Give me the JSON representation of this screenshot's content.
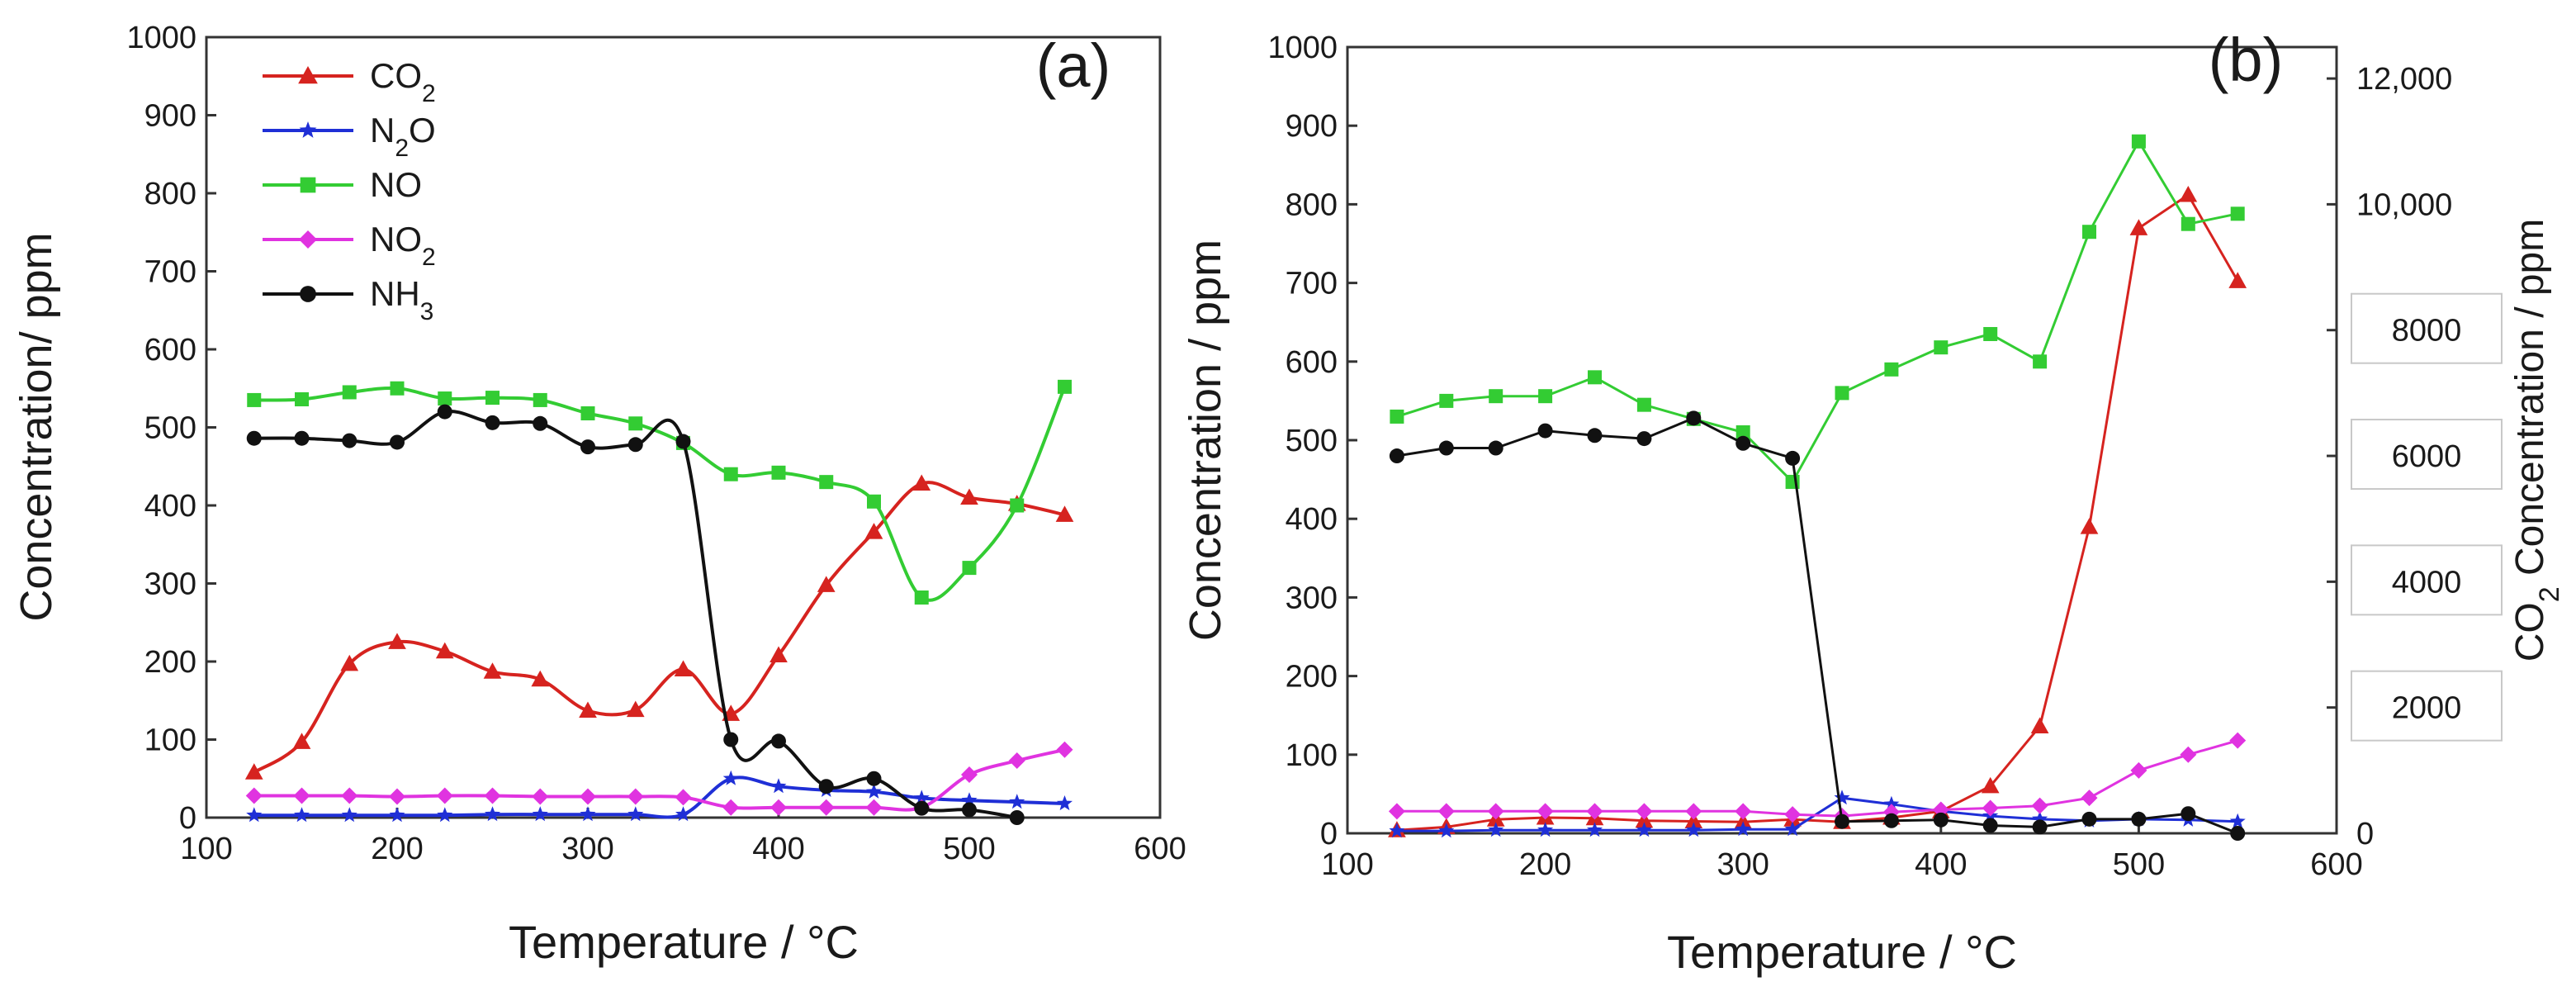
{
  "chart_data": [
    {
      "type": "line",
      "panel_label": "(a)",
      "xlabel": "Temperature / °C",
      "ylabel": "Concentration/ ppm",
      "xlim": [
        100,
        600
      ],
      "ylim": [
        0,
        1000
      ],
      "xticks": [
        "100",
        "200",
        "300",
        "400",
        "500",
        "600"
      ],
      "yticks": [
        "0",
        "100",
        "200",
        "300",
        "400",
        "500",
        "600",
        "700",
        "800",
        "900",
        "1000"
      ],
      "legend_position": "top-left",
      "series": [
        {
          "name": "CO2",
          "label_main": "CO",
          "label_sub": "2",
          "color": "#d6231f",
          "marker": "triangle",
          "x": [
            125,
            150,
            175,
            200,
            225,
            250,
            275,
            300,
            325,
            350,
            375,
            400,
            425,
            450,
            475,
            500,
            525,
            550
          ],
          "y": [
            58,
            97,
            197,
            225,
            213,
            187,
            177,
            137,
            138,
            190,
            133,
            208,
            298,
            366,
            428,
            410,
            402,
            388
          ]
        },
        {
          "name": "N2O",
          "label_main": "N",
          "label_sub": "2",
          "label_tail": "O",
          "color": "#1f2fd6",
          "marker": "star",
          "x": [
            125,
            150,
            175,
            200,
            225,
            250,
            275,
            300,
            325,
            350,
            375,
            400,
            425,
            450,
            475,
            500,
            525,
            550
          ],
          "y": [
            3,
            3,
            3,
            3,
            3,
            4,
            4,
            4,
            4,
            4,
            50,
            40,
            35,
            33,
            25,
            22,
            20,
            18
          ]
        },
        {
          "name": "NO",
          "label_main": "NO",
          "color": "#33cc33",
          "marker": "square",
          "x": [
            125,
            150,
            175,
            200,
            225,
            250,
            275,
            300,
            325,
            350,
            375,
            400,
            425,
            450,
            475,
            500,
            525,
            550
          ],
          "y": [
            535,
            536,
            545,
            550,
            537,
            538,
            535,
            518,
            505,
            480,
            440,
            442,
            430,
            405,
            282,
            320,
            400,
            552
          ]
        },
        {
          "name": "NO2",
          "label_main": "NO",
          "label_sub": "2",
          "color": "#e033e0",
          "marker": "diamond",
          "x": [
            125,
            150,
            175,
            200,
            225,
            250,
            275,
            300,
            325,
            350,
            375,
            400,
            425,
            450,
            475,
            500,
            525,
            550
          ],
          "y": [
            28,
            28,
            28,
            27,
            28,
            28,
            27,
            27,
            27,
            26,
            13,
            13,
            13,
            13,
            13,
            55,
            73,
            87
          ]
        },
        {
          "name": "NH3",
          "label_main": "NH",
          "label_sub": "3",
          "color": "#111111",
          "marker": "circle",
          "x": [
            125,
            150,
            175,
            200,
            225,
            250,
            275,
            300,
            325,
            350,
            375,
            400,
            425,
            450,
            475,
            500,
            525
          ],
          "y": [
            486,
            486,
            483,
            481,
            520,
            506,
            505,
            475,
            478,
            482,
            100,
            98,
            40,
            50,
            12,
            10,
            0
          ]
        }
      ]
    },
    {
      "type": "line",
      "panel_label": "(b)",
      "xlabel": "Temperature / °C",
      "ylabel": "Concentration / ppm",
      "ylabel_right_main": "CO",
      "ylabel_right_sub": "2",
      "ylabel_right_tail": " Concentration / ppm",
      "xlim": [
        100,
        600
      ],
      "ylim": [
        0,
        1000
      ],
      "ylim_right": [
        0,
        12500
      ],
      "xticks": [
        "100",
        "200",
        "300",
        "400",
        "500",
        "600"
      ],
      "yticks": [
        "0",
        "100",
        "200",
        "300",
        "400",
        "500",
        "600",
        "700",
        "800",
        "900",
        "1000"
      ],
      "yticks_right": [
        "0",
        "2000",
        "4000",
        "6000",
        "8000",
        "10,000",
        "12,000"
      ],
      "yticks_right_values": [
        0,
        2000,
        4000,
        6000,
        8000,
        10000,
        12000
      ],
      "series": [
        {
          "name": "CO2",
          "axis": "right",
          "color": "#d6231f",
          "marker": "triangle",
          "x": [
            125,
            150,
            175,
            200,
            225,
            250,
            275,
            300,
            325,
            350,
            375,
            400,
            425,
            450,
            475,
            500,
            525,
            550
          ],
          "y": [
            50,
            100,
            220,
            250,
            240,
            200,
            190,
            180,
            220,
            180,
            250,
            350,
            750,
            1700,
            4870,
            9620,
            10150,
            8780
          ]
        },
        {
          "name": "N2O",
          "axis": "left",
          "color": "#1f2fd6",
          "marker": "star",
          "x": [
            125,
            150,
            175,
            200,
            225,
            250,
            275,
            300,
            325,
            350,
            375,
            400,
            425,
            450,
            475,
            500,
            525,
            550
          ],
          "y": [
            3,
            3,
            4,
            4,
            4,
            4,
            4,
            5,
            5,
            45,
            37,
            28,
            22,
            18,
            16,
            18,
            17,
            15
          ]
        },
        {
          "name": "NO",
          "axis": "left",
          "color": "#33cc33",
          "marker": "square",
          "x": [
            125,
            150,
            175,
            200,
            225,
            250,
            275,
            300,
            325,
            350,
            375,
            400,
            425,
            450,
            475,
            500,
            525,
            550
          ],
          "y": [
            530,
            550,
            556,
            556,
            580,
            545,
            527,
            510,
            447,
            560,
            590,
            618,
            635,
            600,
            765,
            880,
            775,
            788
          ]
        },
        {
          "name": "NO2",
          "axis": "left",
          "color": "#e033e0",
          "marker": "diamond",
          "x": [
            125,
            150,
            175,
            200,
            225,
            250,
            275,
            300,
            325,
            350,
            375,
            400,
            425,
            450,
            475,
            500,
            525,
            550
          ],
          "y": [
            28,
            28,
            28,
            28,
            28,
            28,
            28,
            28,
            24,
            22,
            27,
            30,
            32,
            35,
            45,
            80,
            100,
            118
          ]
        },
        {
          "name": "NH3",
          "axis": "left",
          "color": "#111111",
          "marker": "circle",
          "x": [
            125,
            150,
            175,
            200,
            225,
            250,
            275,
            300,
            325,
            350,
            375,
            400,
            425,
            450,
            475,
            500,
            525,
            550
          ],
          "y": [
            480,
            490,
            490,
            512,
            506,
            502,
            528,
            496,
            477,
            15,
            16,
            17,
            10,
            8,
            18,
            18,
            25,
            0
          ]
        }
      ]
    }
  ]
}
